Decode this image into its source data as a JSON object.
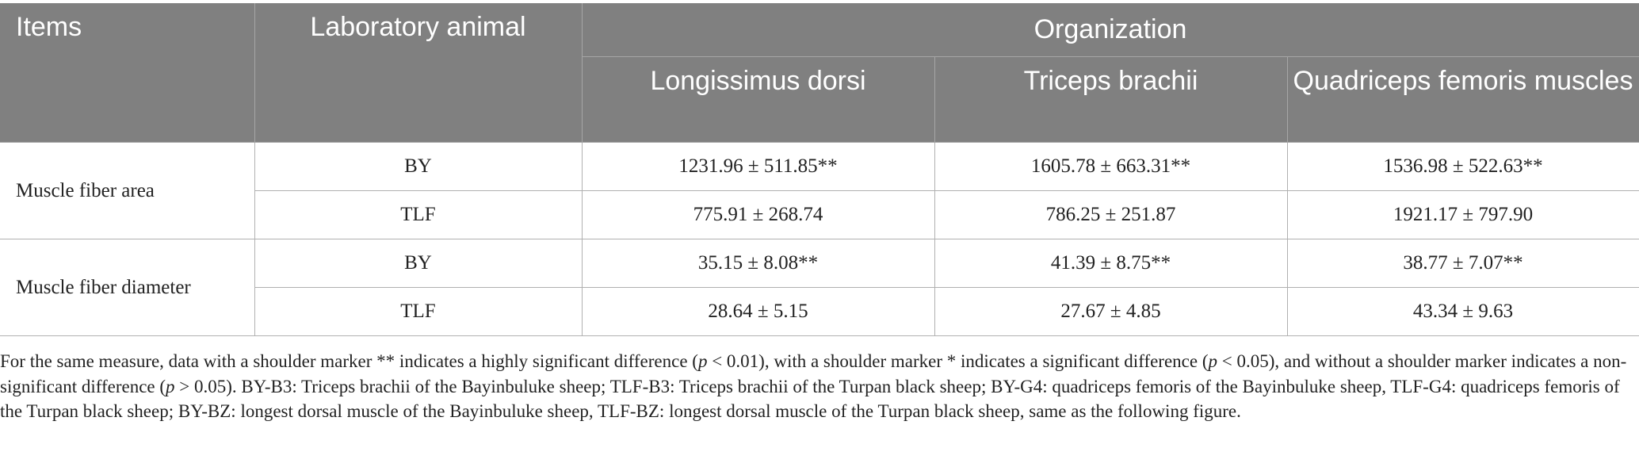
{
  "table": {
    "headers": {
      "items": "Items",
      "animal": "Laboratory animal",
      "organization": "Organization",
      "columns": [
        "Longissimus dorsi",
        "Triceps brachii",
        "Quadriceps femoris muscles"
      ]
    },
    "groups": [
      {
        "item": "Muscle fiber area",
        "rows": [
          {
            "animal": "BY",
            "values": [
              "1231.96 ± 511.85**",
              "1605.78 ± 663.31**",
              "1536.98 ± 522.63**"
            ]
          },
          {
            "animal": "TLF",
            "values": [
              "775.91 ± 268.74",
              "786.25 ± 251.87",
              "1921.17 ± 797.90"
            ]
          }
        ]
      },
      {
        "item": "Muscle fiber diameter",
        "rows": [
          {
            "animal": "BY",
            "values": [
              "35.15 ± 8.08**",
              "41.39 ± 8.75**",
              "38.77 ± 7.07**"
            ]
          },
          {
            "animal": "TLF",
            "values": [
              "28.64 ± 5.15",
              "27.67 ± 4.85",
              "43.34 ± 9.63"
            ]
          }
        ]
      }
    ]
  },
  "footnote": {
    "part1": "For the same measure, data with a shoulder marker ** indicates a highly significant difference (",
    "p1": "p",
    "part2": " < 0.01), with a shoulder marker * indicates a significant difference (",
    "p2": "p",
    "part3": " < 0.05), and without a shoulder marker indicates a non-significant difference (",
    "p3": "p",
    "part4": " > 0.05). BY-B3: Triceps brachii of the Bayinbuluke sheep; TLF-B3: Triceps brachii of the Turpan black sheep; BY-G4: quadriceps femoris of the Bayinbuluke sheep, TLF-G4: quadriceps femoris of the Turpan black sheep; BY-BZ: longest dorsal muscle of the Bayinbuluke sheep, TLF-BZ: longest dorsal muscle of the Turpan black sheep, same as the following figure."
  }
}
